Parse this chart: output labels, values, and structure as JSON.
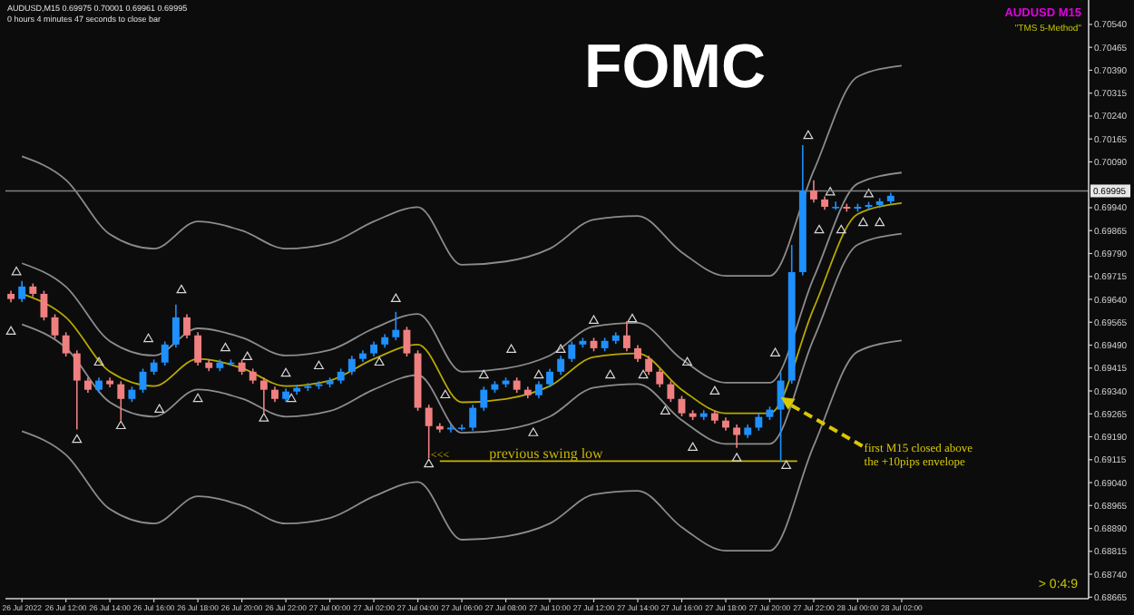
{
  "chart_data": {
    "type": "candlestick",
    "title": "FOMC",
    "x": [
      "2022-07-26T09:30",
      "2022-07-26T10:00",
      "2022-07-26T10:30",
      "2022-07-26T11:00",
      "2022-07-26T11:30",
      "2022-07-26T12:00",
      "2022-07-26T12:30",
      "2022-07-26T13:00",
      "2022-07-26T13:30",
      "2022-07-26T14:00",
      "2022-07-26T14:30",
      "2022-07-26T15:00",
      "2022-07-26T15:30",
      "2022-07-26T16:00",
      "2022-07-26T16:30",
      "2022-07-26T17:00",
      "2022-07-26T17:30",
      "2022-07-26T18:00",
      "2022-07-26T18:30",
      "2022-07-26T19:00",
      "2022-07-26T19:30",
      "2022-07-26T20:00",
      "2022-07-26T20:30",
      "2022-07-26T21:00",
      "2022-07-26T21:30",
      "2022-07-26T22:00",
      "2022-07-26T22:30",
      "2022-07-26T23:00",
      "2022-07-26T23:30",
      "2022-07-27T00:00",
      "2022-07-27T00:30",
      "2022-07-27T01:00",
      "2022-07-27T01:30",
      "2022-07-27T02:00",
      "2022-07-27T02:30",
      "2022-07-27T03:00",
      "2022-07-27T03:30",
      "2022-07-27T04:00",
      "2022-07-27T04:30",
      "2022-07-27T05:00",
      "2022-07-27T05:30",
      "2022-07-27T06:00",
      "2022-07-27T06:30",
      "2022-07-27T07:00",
      "2022-07-27T07:30",
      "2022-07-27T08:00",
      "2022-07-27T08:30",
      "2022-07-27T09:00",
      "2022-07-27T09:30",
      "2022-07-27T10:00",
      "2022-07-27T10:30",
      "2022-07-27T11:00",
      "2022-07-27T11:30",
      "2022-07-27T12:00",
      "2022-07-27T12:30",
      "2022-07-27T13:00",
      "2022-07-27T13:30",
      "2022-07-27T14:00",
      "2022-07-27T14:30",
      "2022-07-27T15:00",
      "2022-07-27T15:30",
      "2022-07-27T16:00",
      "2022-07-27T16:30",
      "2022-07-27T17:00",
      "2022-07-27T17:30",
      "2022-07-27T18:00",
      "2022-07-27T18:30",
      "2022-07-27T19:00",
      "2022-07-27T19:30",
      "2022-07-27T20:00",
      "2022-07-27T20:30",
      "2022-07-27T21:00",
      "2022-07-27T21:30",
      "2022-07-27T22:00",
      "2022-07-27T22:30",
      "2022-07-27T23:00",
      "2022-07-27T23:30",
      "2022-07-28T00:00",
      "2022-07-28T00:30",
      "2022-07-28T01:00",
      "2022-07-28T01:30"
    ],
    "ohlc": [
      [
        0.69658,
        0.69668,
        0.6963,
        0.69641
      ],
      [
        0.69641,
        0.697,
        0.69631,
        0.69682
      ],
      [
        0.69682,
        0.69692,
        0.69648,
        0.69658
      ],
      [
        0.69658,
        0.69668,
        0.69571,
        0.69581
      ],
      [
        0.69581,
        0.69591,
        0.69512,
        0.69522
      ],
      [
        0.69522,
        0.69532,
        0.69453,
        0.69463
      ],
      [
        0.69463,
        0.69473,
        0.69214,
        0.69374
      ],
      [
        0.69374,
        0.69384,
        0.69334,
        0.69344
      ],
      [
        0.69344,
        0.69384,
        0.69334,
        0.69374
      ],
      [
        0.69374,
        0.69384,
        0.69352,
        0.69362
      ],
      [
        0.69362,
        0.69372,
        0.69243,
        0.69314
      ],
      [
        0.69314,
        0.69354,
        0.69304,
        0.69344
      ],
      [
        0.69344,
        0.69413,
        0.69334,
        0.69403
      ],
      [
        0.69403,
        0.69443,
        0.69393,
        0.69433
      ],
      [
        0.69433,
        0.69502,
        0.69423,
        0.69492
      ],
      [
        0.69492,
        0.69623,
        0.69482,
        0.69581
      ],
      [
        0.69581,
        0.69591,
        0.69512,
        0.69522
      ],
      [
        0.69522,
        0.69532,
        0.69423,
        0.69433
      ],
      [
        0.69433,
        0.69443,
        0.69405,
        0.69415
      ],
      [
        0.69415,
        0.69443,
        0.69405,
        0.69433
      ],
      [
        0.69433,
        0.69443,
        0.69423,
        0.69433
      ],
      [
        0.69433,
        0.69443,
        0.69393,
        0.69403
      ],
      [
        0.69403,
        0.69413,
        0.69364,
        0.69374
      ],
      [
        0.69374,
        0.69384,
        0.69267,
        0.69344
      ],
      [
        0.69344,
        0.69354,
        0.69304,
        0.69314
      ],
      [
        0.69314,
        0.69348,
        0.69304,
        0.69338
      ],
      [
        0.69338,
        0.6936,
        0.69328,
        0.6935
      ],
      [
        0.6935,
        0.69366,
        0.6934,
        0.69356
      ],
      [
        0.69356,
        0.69372,
        0.69346,
        0.69362
      ],
      [
        0.69362,
        0.69384,
        0.69352,
        0.69374
      ],
      [
        0.69374,
        0.69413,
        0.69364,
        0.69403
      ],
      [
        0.69403,
        0.69455,
        0.69393,
        0.69445
      ],
      [
        0.69445,
        0.69473,
        0.69435,
        0.69463
      ],
      [
        0.69463,
        0.69502,
        0.69453,
        0.69492
      ],
      [
        0.69492,
        0.69526,
        0.69482,
        0.69516
      ],
      [
        0.69516,
        0.69599,
        0.69506,
        0.6954
      ],
      [
        0.6954,
        0.6955,
        0.69453,
        0.69463
      ],
      [
        0.69463,
        0.69473,
        0.69275,
        0.69285
      ],
      [
        0.69285,
        0.69295,
        0.6912,
        0.69225
      ],
      [
        0.69225,
        0.69235,
        0.69204,
        0.69214
      ],
      [
        0.69214,
        0.6923,
        0.69204,
        0.6922
      ],
      [
        0.6922,
        0.6923,
        0.6921,
        0.6922
      ],
      [
        0.6922,
        0.69295,
        0.6921,
        0.69285
      ],
      [
        0.69285,
        0.69354,
        0.69275,
        0.69344
      ],
      [
        0.69344,
        0.69372,
        0.69334,
        0.69362
      ],
      [
        0.69362,
        0.69384,
        0.69352,
        0.69374
      ],
      [
        0.69374,
        0.69384,
        0.69334,
        0.69344
      ],
      [
        0.69344,
        0.69354,
        0.69316,
        0.69326
      ],
      [
        0.69326,
        0.69372,
        0.69316,
        0.69362
      ],
      [
        0.69362,
        0.69413,
        0.69352,
        0.69403
      ],
      [
        0.69403,
        0.69455,
        0.69393,
        0.69445
      ],
      [
        0.69445,
        0.69502,
        0.69435,
        0.69492
      ],
      [
        0.69492,
        0.69514,
        0.69482,
        0.69504
      ],
      [
        0.69504,
        0.69514,
        0.6947,
        0.6948
      ],
      [
        0.6948,
        0.69514,
        0.6947,
        0.69504
      ],
      [
        0.69504,
        0.69532,
        0.69494,
        0.69522
      ],
      [
        0.69522,
        0.69569,
        0.6947,
        0.6948
      ],
      [
        0.6948,
        0.6949,
        0.69435,
        0.69445
      ],
      [
        0.69445,
        0.69455,
        0.69393,
        0.69403
      ],
      [
        0.69403,
        0.69413,
        0.69352,
        0.69362
      ],
      [
        0.69362,
        0.69372,
        0.69304,
        0.69314
      ],
      [
        0.69314,
        0.69324,
        0.69257,
        0.69267
      ],
      [
        0.69267,
        0.69277,
        0.69245,
        0.69255
      ],
      [
        0.69255,
        0.69277,
        0.69245,
        0.69267
      ],
      [
        0.69267,
        0.69277,
        0.69233,
        0.69243
      ],
      [
        0.69243,
        0.69253,
        0.6921,
        0.6922
      ],
      [
        0.6922,
        0.6923,
        0.69154,
        0.69196
      ],
      [
        0.69196,
        0.6923,
        0.69186,
        0.6922
      ],
      [
        0.6922,
        0.69265,
        0.6921,
        0.69255
      ],
      [
        0.69255,
        0.69289,
        0.69245,
        0.69279
      ],
      [
        0.69279,
        0.694,
        0.6911,
        0.69374
      ],
      [
        0.69374,
        0.69818,
        0.69364,
        0.69729
      ],
      [
        0.69729,
        0.70145,
        0.69719,
        0.69996
      ],
      [
        0.69996,
        0.7003,
        0.69957,
        0.69967
      ],
      [
        0.69967,
        0.69977,
        0.69933,
        0.69943
      ],
      [
        0.69943,
        0.6996,
        0.69933,
        0.69943
      ],
      [
        0.69943,
        0.69953,
        0.69927,
        0.69937
      ],
      [
        0.69937,
        0.69953,
        0.69927,
        0.69943
      ],
      [
        0.69943,
        0.69959,
        0.69933,
        0.69949
      ],
      [
        0.69949,
        0.69971,
        0.69939,
        0.69961
      ],
      [
        0.69961,
        0.69989,
        0.69951,
        0.69979
      ]
    ],
    "colors": [
      "#f08080",
      "#1e90ff",
      "#f08080",
      "#f08080",
      "#f08080",
      "#f08080",
      "#f08080",
      "#f08080",
      "#1e90ff",
      "#f08080",
      "#f08080",
      "#1e90ff",
      "#1e90ff",
      "#1e90ff",
      "#1e90ff",
      "#1e90ff",
      "#f08080",
      "#f08080",
      "#f08080",
      "#1e90ff",
      "#1e90ff",
      "#f08080",
      "#f08080",
      "#f08080",
      "#f08080",
      "#1e90ff",
      "#1e90ff",
      "#1e90ff",
      "#1e90ff",
      "#1e90ff",
      "#1e90ff",
      "#1e90ff",
      "#1e90ff",
      "#1e90ff",
      "#1e90ff",
      "#1e90ff",
      "#f08080",
      "#f08080",
      "#f08080",
      "#f08080",
      "#1e90ff",
      "#1e90ff",
      "#1e90ff",
      "#1e90ff",
      "#1e90ff",
      "#1e90ff",
      "#f08080",
      "#f08080",
      "#1e90ff",
      "#1e90ff",
      "#1e90ff",
      "#1e90ff",
      "#1e90ff",
      "#f08080",
      "#1e90ff",
      "#1e90ff",
      "#f08080",
      "#f08080",
      "#f08080",
      "#f08080",
      "#f08080",
      "#f08080",
      "#f08080",
      "#1e90ff",
      "#f08080",
      "#f08080",
      "#f08080",
      "#1e90ff",
      "#1e90ff",
      "#1e90ff",
      "#1e90ff",
      "#1e90ff",
      "#1e90ff",
      "#f08080",
      "#f08080",
      "#1e90ff",
      "#f08080",
      "#1e90ff",
      "#1e90ff",
      "#1e90ff",
      "#1e90ff"
    ],
    "series": [
      {
        "type": "line",
        "color": "#b8a800",
        "x": [
          "2022-07-26T10:00",
          "2022-07-26T12:00",
          "2022-07-26T14:00",
          "2022-07-26T16:00",
          "2022-07-26T18:00",
          "2022-07-26T20:00",
          "2022-07-26T22:00",
          "2022-07-27T00:00",
          "2022-07-27T02:00",
          "2022-07-27T04:00",
          "2022-07-27T06:00",
          "2022-07-27T08:00",
          "2022-07-27T10:00",
          "2022-07-27T12:00",
          "2022-07-27T14:00",
          "2022-07-27T16:00",
          "2022-07-27T18:00",
          "2022-07-27T20:00",
          "2022-07-27T22:00",
          "2022-07-28T00:00",
          "2022-07-28T02:00"
        ],
        "values": [
          0.69658,
          0.69581,
          0.69403,
          0.69356,
          0.69445,
          0.69415,
          0.69356,
          0.69374,
          0.69445,
          0.69492,
          0.69303,
          0.69314,
          0.69356,
          0.69451,
          0.69463,
          0.69344,
          0.69267,
          0.69267,
          0.69611,
          0.69919,
          0.69955
        ]
      },
      {
        "type": "line",
        "color": "#8c8c8c",
        "x": [
          "2022-07-26T10:00",
          "2022-07-26T12:00",
          "2022-07-26T14:00",
          "2022-07-26T16:00",
          "2022-07-26T18:00",
          "2022-07-26T20:00",
          "2022-07-26T22:00",
          "2022-07-27T00:00",
          "2022-07-27T02:00",
          "2022-07-27T04:00",
          "2022-07-27T06:00",
          "2022-07-27T08:00",
          "2022-07-27T10:00",
          "2022-07-27T12:00",
          "2022-07-27T14:00",
          "2022-07-27T16:00",
          "2022-07-27T18:00",
          "2022-07-27T20:00",
          "2022-07-27T22:00",
          "2022-07-28T00:00",
          "2022-07-28T02:00"
        ],
        "values": [
          0.69758,
          0.69681,
          0.69503,
          0.69456,
          0.69545,
          0.69515,
          0.69456,
          0.69474,
          0.69545,
          0.69592,
          0.69403,
          0.69414,
          0.69456,
          0.69551,
          0.69563,
          0.69444,
          0.69367,
          0.69367,
          0.69711,
          0.70019,
          0.70055
        ]
      },
      {
        "type": "line",
        "color": "#8c8c8c",
        "x": [
          "2022-07-26T10:00",
          "2022-07-26T12:00",
          "2022-07-26T14:00",
          "2022-07-26T16:00",
          "2022-07-26T18:00",
          "2022-07-26T20:00",
          "2022-07-26T22:00",
          "2022-07-27T00:00",
          "2022-07-27T02:00",
          "2022-07-27T04:00",
          "2022-07-27T06:00",
          "2022-07-27T08:00",
          "2022-07-27T10:00",
          "2022-07-27T12:00",
          "2022-07-27T14:00",
          "2022-07-27T16:00",
          "2022-07-27T18:00",
          "2022-07-27T20:00",
          "2022-07-27T22:00",
          "2022-07-28T00:00",
          "2022-07-28T02:00"
        ],
        "values": [
          0.69558,
          0.69481,
          0.69303,
          0.69256,
          0.69345,
          0.69315,
          0.69256,
          0.69274,
          0.69345,
          0.69392,
          0.69203,
          0.69214,
          0.69256,
          0.69351,
          0.69363,
          0.69244,
          0.69167,
          0.69167,
          0.69511,
          0.69819,
          0.69855
        ]
      },
      {
        "type": "line",
        "color": "#8c8c8c",
        "x": [
          "2022-07-26T10:00",
          "2022-07-26T12:00",
          "2022-07-26T14:00",
          "2022-07-26T16:00",
          "2022-07-26T18:00",
          "2022-07-26T20:00",
          "2022-07-26T22:00",
          "2022-07-27T00:00",
          "2022-07-27T02:00",
          "2022-07-27T04:00",
          "2022-07-27T06:00",
          "2022-07-27T08:00",
          "2022-07-27T10:00",
          "2022-07-27T12:00",
          "2022-07-27T14:00",
          "2022-07-27T16:00",
          "2022-07-27T18:00",
          "2022-07-27T20:00",
          "2022-07-27T22:00",
          "2022-07-28T00:00",
          "2022-07-28T02:00"
        ],
        "values": [
          0.70108,
          0.70031,
          0.69853,
          0.69806,
          0.69895,
          0.69865,
          0.69806,
          0.69824,
          0.69895,
          0.69942,
          0.69753,
          0.69764,
          0.69806,
          0.69901,
          0.69913,
          0.69794,
          0.69717,
          0.69717,
          0.70061,
          0.70369,
          0.70405
        ]
      },
      {
        "type": "line",
        "color": "#8c8c8c",
        "x": [
          "2022-07-26T10:00",
          "2022-07-26T12:00",
          "2022-07-26T14:00",
          "2022-07-26T16:00",
          "2022-07-26T18:00",
          "2022-07-26T20:00",
          "2022-07-26T22:00",
          "2022-07-27T00:00",
          "2022-07-27T02:00",
          "2022-07-27T04:00",
          "2022-07-27T06:00",
          "2022-07-27T08:00",
          "2022-07-27T10:00",
          "2022-07-27T12:00",
          "2022-07-27T14:00",
          "2022-07-27T16:00",
          "2022-07-27T18:00",
          "2022-07-27T20:00",
          "2022-07-27T22:00",
          "2022-07-28T00:00",
          "2022-07-28T02:00"
        ],
        "values": [
          0.69208,
          0.69131,
          0.68953,
          0.68906,
          0.68995,
          0.68965,
          0.68906,
          0.68924,
          0.68995,
          0.69042,
          0.68853,
          0.68864,
          0.68906,
          0.69001,
          0.69013,
          0.68894,
          0.68817,
          0.68817,
          0.69161,
          0.69469,
          0.69505
        ]
      },
      {
        "type": "line",
        "color": "#c8b400",
        "x": [
          "2022-07-27T05:00",
          "2022-07-27T21:15"
        ],
        "values": [
          0.6911,
          0.6911
        ]
      },
      {
        "type": "scatter",
        "color": "#d8d8d8",
        "marker": "triangle",
        "x": [
          "2022-07-26T09:45",
          "2022-07-26T13:30",
          "2022-07-26T15:45",
          "2022-07-26T17:15",
          "2022-07-26T19:15",
          "2022-07-26T20:15",
          "2022-07-26T22:00",
          "2022-07-26T23:30",
          "2022-07-27T03:00",
          "2022-07-27T05:15",
          "2022-07-27T07:00",
          "2022-07-27T08:15",
          "2022-07-27T09:30",
          "2022-07-27T10:30",
          "2022-07-27T12:00",
          "2022-07-27T13:45",
          "2022-07-27T16:15",
          "2022-07-27T17:30",
          "2022-07-27T20:15",
          "2022-07-27T21:45",
          "2022-07-27T22:45",
          "2022-07-28T00:30"
        ],
        "values": [
          0.69729,
          0.69433,
          0.6951,
          0.6967,
          0.6948,
          0.69451,
          0.69397,
          0.69421,
          0.69641,
          0.69326,
          0.69391,
          0.69475,
          0.69391,
          0.69475,
          0.6957,
          0.69575,
          0.69433,
          0.69338,
          0.69463,
          0.70175,
          0.6999,
          0.69984
        ]
      },
      {
        "type": "scatter",
        "color": "#d8d8d8",
        "marker": "triangle",
        "x": [
          "2022-07-26T09:30",
          "2022-07-26T12:30",
          "2022-07-26T14:30",
          "2022-07-26T16:15",
          "2022-07-26T18:00",
          "2022-07-26T21:00",
          "2022-07-26T22:15",
          "2022-07-27T02:15",
          "2022-07-27T04:30",
          "2022-07-27T09:15",
          "2022-07-27T12:45",
          "2022-07-27T14:15",
          "2022-07-27T15:15",
          "2022-07-27T16:30",
          "2022-07-27T18:30",
          "2022-07-27T20:45",
          "2022-07-27T22:15",
          "2022-07-27T23:15",
          "2022-07-28T00:15",
          "2022-07-28T01:00"
        ],
        "values": [
          0.69534,
          0.6918,
          0.69225,
          0.69279,
          0.69314,
          0.6925,
          0.69314,
          0.69433,
          0.691,
          0.69202,
          0.69391,
          0.69391,
          0.69273,
          0.69154,
          0.69119,
          0.69095,
          0.69866,
          0.69866,
          0.6989,
          0.6989
        ]
      }
    ],
    "ref_lines": [
      {
        "axis": "y",
        "value": 0.69995,
        "label": "0.69995",
        "color": "#808080"
      }
    ],
    "annotations": [
      "AUDUSD,M15  0.69975 0.70001 0.69961 0.69995",
      "0 hours 4 minutes 47 seconds to close bar",
      "AUDUSD M15",
      "\"TMS 5-Method\"",
      "> 0:4:9",
      {
        "text": "<<<",
        "x": "2022-07-27T04:30",
        "y": 0.6911
      },
      {
        "text": "previous swing low",
        "x": "2022-07-27T07:15",
        "y": 0.6911
      },
      {
        "text": "first M15 closed above the +10pips envelope",
        "x": "2022-07-27T20:30",
        "y": 0.6932
      }
    ],
    "xlim": [
      "2022-07-26T09:15",
      "2022-07-28T10:30"
    ],
    "xticks": [
      {
        "value": "2022-07-26T10:00",
        "label": "26 Jul 2022"
      },
      {
        "value": "2022-07-26T12:00",
        "label": "26 Jul 12:00"
      },
      {
        "value": "2022-07-26T14:00",
        "label": "26 Jul 14:00"
      },
      {
        "value": "2022-07-26T16:00",
        "label": "26 Jul 16:00"
      },
      {
        "value": "2022-07-26T18:00",
        "label": "26 Jul 18:00"
      },
      {
        "value": "2022-07-26T20:00",
        "label": "26 Jul 20:00"
      },
      {
        "value": "2022-07-26T22:00",
        "label": "26 Jul 22:00"
      },
      {
        "value": "2022-07-27T00:00",
        "label": "27 Jul 00:00"
      },
      {
        "value": "2022-07-27T02:00",
        "label": "27 Jul 02:00"
      },
      {
        "value": "2022-07-27T04:00",
        "label": "27 Jul 04:00"
      },
      {
        "value": "2022-07-27T06:00",
        "label": "27 Jul 06:00"
      },
      {
        "value": "2022-07-27T08:00",
        "label": "27 Jul 08:00"
      },
      {
        "value": "2022-07-27T10:00",
        "label": "27 Jul 10:00"
      },
      {
        "value": "2022-07-27T12:00",
        "label": "27 Jul 12:00"
      },
      {
        "value": "2022-07-27T14:00",
        "label": "27 Jul 14:00"
      },
      {
        "value": "2022-07-27T16:00",
        "label": "27 Jul 16:00"
      },
      {
        "value": "2022-07-27T18:00",
        "label": "27 Jul 18:00"
      },
      {
        "value": "2022-07-27T20:00",
        "label": "27 Jul 20:00"
      },
      {
        "value": "2022-07-27T22:00",
        "label": "27 Jul 22:00"
      },
      {
        "value": "2022-07-28T00:00",
        "label": "28 Jul 00:00"
      },
      {
        "value": "2022-07-28T02:00",
        "label": "28 Jul 02:00"
      }
    ],
    "ylim": [
      0.6866,
      0.7062
    ],
    "yticks": [
      0.68665,
      {
        "value": 0.6874,
        "label": "0.68740"
      },
      0.68815,
      {
        "value": 0.6889,
        "label": "0.68890"
      },
      0.68965,
      {
        "value": 0.6904,
        "label": "0.69040"
      },
      0.69115,
      {
        "value": 0.6919,
        "label": "0.69190"
      },
      0.69265,
      {
        "value": 0.6934,
        "label": "0.69340"
      },
      0.69415,
      {
        "value": 0.6949,
        "label": "0.69490"
      },
      0.69565,
      {
        "value": 0.6964,
        "label": "0.69640"
      },
      0.69715,
      {
        "value": 0.6979,
        "label": "0.69790"
      },
      0.69865,
      {
        "value": 0.6994,
        "label": "0.69940"
      },
      {
        "value": 0.7009,
        "label": "0.70090"
      },
      0.70165,
      {
        "value": 0.7024,
        "label": "0.70240"
      },
      0.70315,
      {
        "value": 0.7039,
        "label": "0.70390"
      },
      0.70465,
      {
        "value": 0.7054,
        "label": "0.70540"
      }
    ]
  }
}
